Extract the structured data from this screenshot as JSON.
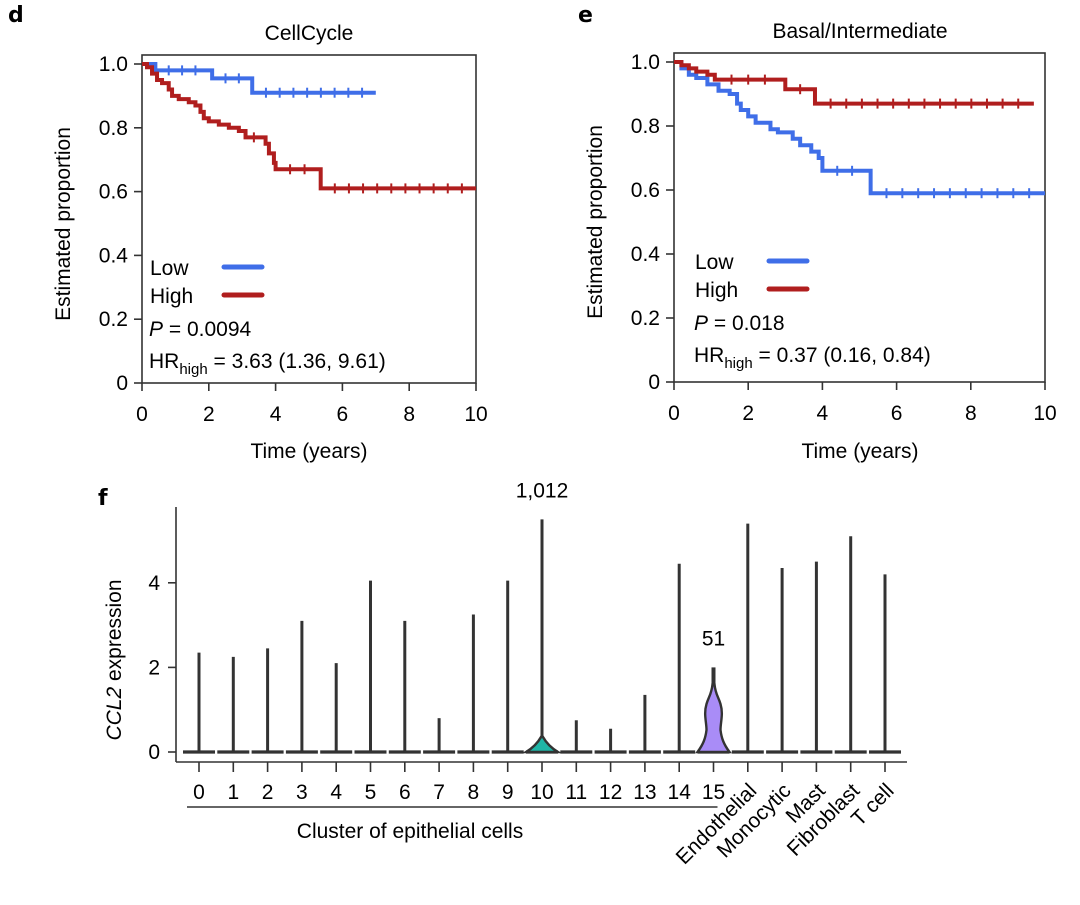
{
  "panels": {
    "d": {
      "letter": "d"
    },
    "e": {
      "letter": "e"
    },
    "f": {
      "letter": "f"
    }
  },
  "colors": {
    "low": "#3f6ee8",
    "high": "#b01e1e",
    "teal": "#1fb5a6",
    "purple": "#a98cf7",
    "axis": "#333333"
  },
  "chart_data": [
    {
      "id": "d",
      "type": "line",
      "subtype": "kaplan-meier",
      "title": "CellCycle",
      "xlabel": "Time (years)",
      "ylabel": "Estimated proportion",
      "xlim": [
        0,
        10
      ],
      "ylim": [
        0,
        1.0
      ],
      "xticks": [
        "0",
        "2",
        "4",
        "6",
        "8",
        "10"
      ],
      "yticks": [
        "0",
        "0.2",
        "0.4",
        "0.6",
        "0.8",
        "1.0"
      ],
      "legend": {
        "position": "bottom-left",
        "entries": [
          "Low",
          "High"
        ]
      },
      "stats": {
        "p_label": "P",
        "p_value": "= 0.0094",
        "hr_label": "HR",
        "hr_sub": "high",
        "hr_value": "= 3.63 (1.36, 9.61)"
      },
      "series": [
        {
          "name": "Low",
          "color_key": "low",
          "steps": [
            [
              0,
              1.0
            ],
            [
              0.4,
              0.98
            ],
            [
              2.0,
              0.98
            ],
            [
              2.1,
              0.955
            ],
            [
              3.3,
              0.955
            ],
            [
              3.3,
              0.91
            ],
            [
              7.0,
              0.91
            ]
          ]
        },
        {
          "name": "High",
          "color_key": "high",
          "steps": [
            [
              0,
              1.0
            ],
            [
              0.15,
              0.99
            ],
            [
              0.3,
              0.97
            ],
            [
              0.45,
              0.95
            ],
            [
              0.6,
              0.94
            ],
            [
              0.8,
              0.92
            ],
            [
              0.9,
              0.9
            ],
            [
              1.1,
              0.89
            ],
            [
              1.4,
              0.88
            ],
            [
              1.6,
              0.87
            ],
            [
              1.75,
              0.85
            ],
            [
              1.85,
              0.83
            ],
            [
              2.0,
              0.82
            ],
            [
              2.3,
              0.81
            ],
            [
              2.6,
              0.8
            ],
            [
              2.9,
              0.79
            ],
            [
              3.1,
              0.77
            ],
            [
              3.6,
              0.77
            ],
            [
              3.7,
              0.75
            ],
            [
              3.8,
              0.72
            ],
            [
              3.95,
              0.69
            ],
            [
              4.0,
              0.67
            ],
            [
              5.3,
              0.67
            ],
            [
              5.35,
              0.61
            ],
            [
              10,
              0.61
            ]
          ]
        }
      ]
    },
    {
      "id": "e",
      "type": "line",
      "subtype": "kaplan-meier",
      "title": "Basal/Intermediate",
      "xlabel": "Time (years)",
      "ylabel": "Estimated proportion",
      "xlim": [
        0,
        10
      ],
      "ylim": [
        0,
        1.0
      ],
      "xticks": [
        "0",
        "2",
        "4",
        "6",
        "8",
        "10"
      ],
      "yticks": [
        "0",
        "0.2",
        "0.4",
        "0.6",
        "0.8",
        "1.0"
      ],
      "legend": {
        "position": "bottom-left",
        "entries": [
          "Low",
          "High"
        ]
      },
      "stats": {
        "p_label": "P",
        "p_value": "= 0.018",
        "hr_label": "HR",
        "hr_sub": "high",
        "hr_value": "= 0.37 (0.16, 0.84)"
      },
      "series": [
        {
          "name": "Low",
          "color_key": "low",
          "steps": [
            [
              0,
              1.0
            ],
            [
              0.2,
              0.98
            ],
            [
              0.4,
              0.96
            ],
            [
              0.6,
              0.95
            ],
            [
              0.9,
              0.93
            ],
            [
              1.2,
              0.91
            ],
            [
              1.5,
              0.9
            ],
            [
              1.7,
              0.87
            ],
            [
              1.8,
              0.85
            ],
            [
              2.0,
              0.83
            ],
            [
              2.2,
              0.81
            ],
            [
              2.6,
              0.79
            ],
            [
              2.8,
              0.78
            ],
            [
              3.2,
              0.76
            ],
            [
              3.4,
              0.74
            ],
            [
              3.7,
              0.72
            ],
            [
              3.9,
              0.7
            ],
            [
              4.0,
              0.66
            ],
            [
              5.2,
              0.66
            ],
            [
              5.3,
              0.59
            ],
            [
              10,
              0.59
            ]
          ]
        },
        {
          "name": "High",
          "color_key": "high",
          "steps": [
            [
              0,
              1.0
            ],
            [
              0.2,
              0.99
            ],
            [
              0.4,
              0.98
            ],
            [
              0.6,
              0.97
            ],
            [
              0.9,
              0.96
            ],
            [
              1.1,
              0.945
            ],
            [
              2.9,
              0.945
            ],
            [
              3.0,
              0.915
            ],
            [
              3.8,
              0.915
            ],
            [
              3.8,
              0.87
            ],
            [
              9.7,
              0.87
            ]
          ]
        }
      ]
    },
    {
      "id": "f",
      "type": "violin",
      "title": "",
      "xlabel": "Cluster of epithelial cells",
      "ylabel_italic": "CCL2",
      "ylabel_rest": " expression",
      "ylim": [
        0,
        5.6
      ],
      "yticks": [
        "0",
        "2",
        "4"
      ],
      "categories": [
        "0",
        "1",
        "2",
        "3",
        "4",
        "5",
        "6",
        "7",
        "8",
        "9",
        "10",
        "11",
        "12",
        "13",
        "14",
        "15",
        "Endothelial",
        "Monocytic",
        "Mast",
        "Fibroblast",
        "T cell"
      ],
      "max_values": [
        2.35,
        2.25,
        2.45,
        3.1,
        2.1,
        4.05,
        3.1,
        0.8,
        3.25,
        4.05,
        5.5,
        0.75,
        0.55,
        1.35,
        4.45,
        2.0,
        5.4,
        4.35,
        4.5,
        5.1,
        4.2
      ],
      "highlight": [
        {
          "category": "10",
          "color_key": "teal",
          "annotation": "1,012"
        },
        {
          "category": "15",
          "color_key": "purple",
          "annotation": "51"
        }
      ],
      "group_bracket": {
        "from": "0",
        "to": "15",
        "label": "Cluster of epithelial cells"
      }
    }
  ]
}
